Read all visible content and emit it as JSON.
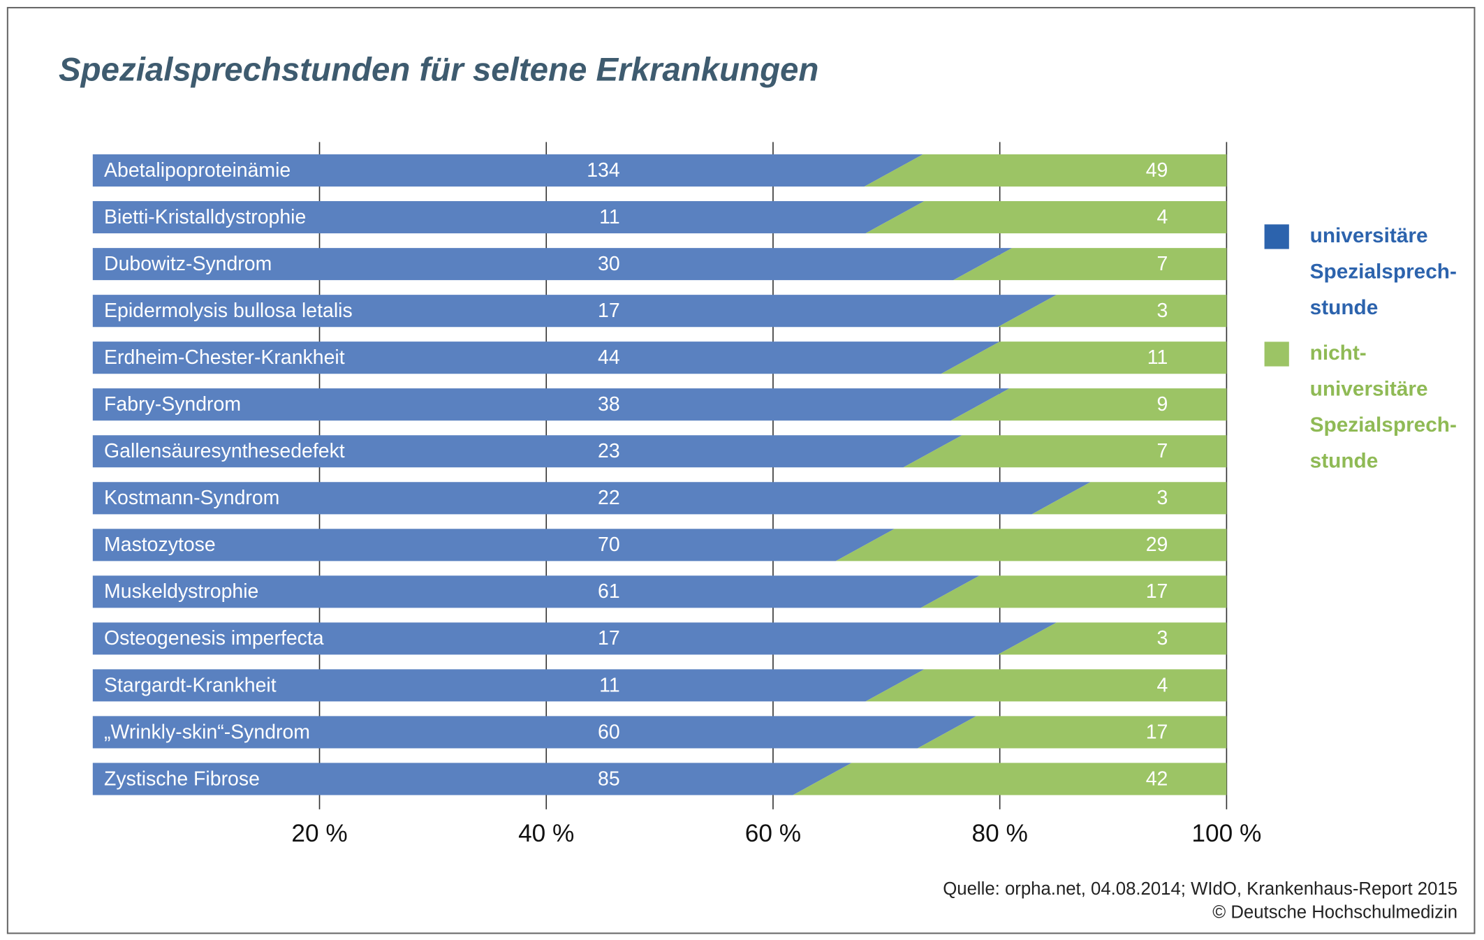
{
  "chart_data": {
    "type": "stacked-bar-100",
    "title": "Spezialsprechstunden für seltene Erkrankungen",
    "categories": [
      "Abetalipoproteinämie",
      "Bietti-Kristalldystrophie",
      "Dubowitz-Syndrom",
      "Epidermolysis bullosa letalis",
      "Erdheim-Chester-Krankheit",
      "Fabry-Syndrom",
      "Gallensäuresynthesedefekt",
      "Kostmann-Syndrom",
      "Mastozytose",
      "Muskeldystrophie",
      "Osteogenesis imperfecta",
      "Stargardt-Krankheit",
      "„Wrinkly-skin“-Syndrom",
      "Zystische Fibrose"
    ],
    "series": [
      {
        "name": "universitäre Spezialsprech-stunde",
        "color": "#5a81c0",
        "legend_color": "#2c63ad",
        "text_color": "#2c63ad",
        "values": [
          134,
          11,
          30,
          17,
          44,
          38,
          23,
          22,
          70,
          61,
          17,
          11,
          60,
          85
        ]
      },
      {
        "name": "nicht-universitäre Spezialsprech-stunde",
        "color": "#9cc465",
        "legend_color": "#9cc465",
        "text_color": "#8fba55",
        "values": [
          49,
          4,
          7,
          3,
          11,
          9,
          7,
          3,
          29,
          17,
          3,
          4,
          17,
          42
        ]
      }
    ],
    "xlim": [
      0,
      100
    ],
    "xticks": [
      {
        "value": 20,
        "label": "20 %"
      },
      {
        "value": 40,
        "label": "40 %"
      },
      {
        "value": 60,
        "label": "60 %"
      },
      {
        "value": 80,
        "label": "80 %"
      },
      {
        "value": 100,
        "label": "100 %"
      }
    ],
    "grid": true,
    "source": [
      "Quelle: orpha.net, 04.08.2014; WIdO, Krankenhaus-Report 2015",
      "© Deutsche Hochschulmedizin"
    ]
  }
}
